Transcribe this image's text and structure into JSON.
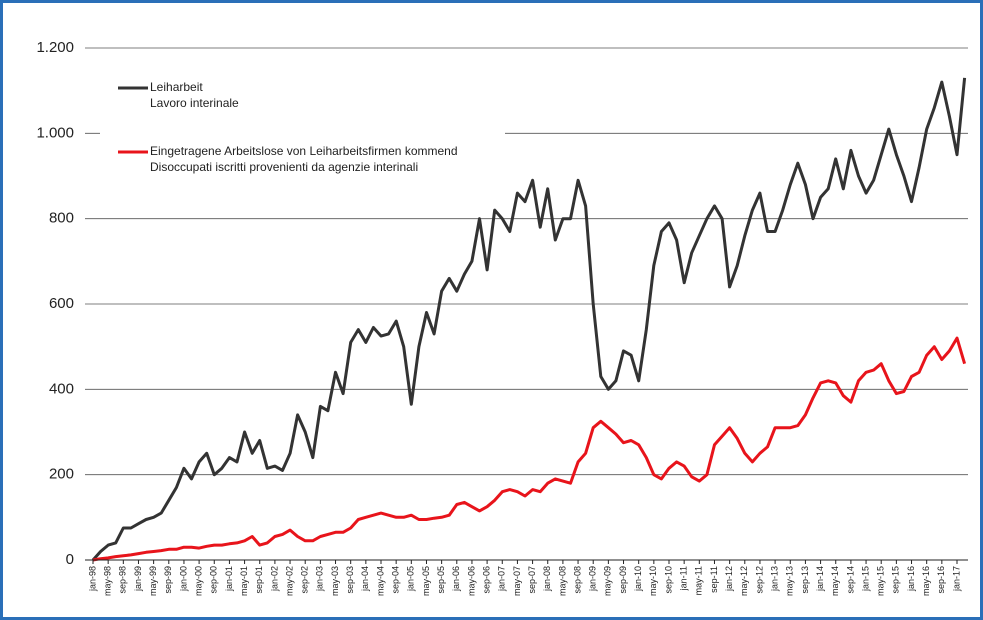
{
  "chart_data": {
    "type": "line",
    "categories": [
      "jan-98",
      null,
      "may-98",
      null,
      "sep-98",
      null,
      "jan-99",
      null,
      "may-99",
      null,
      "sep-99",
      null,
      "jan-00",
      null,
      "may-00",
      null,
      "sep-00",
      null,
      "jan-01",
      null,
      "may-01",
      null,
      "sep-01",
      null,
      "jan-02",
      null,
      "may-02",
      null,
      "sep-02",
      null,
      "jan-03",
      null,
      "may-03",
      null,
      "sep-03",
      null,
      "jan-04",
      null,
      "may-04",
      null,
      "sep-04",
      null,
      "jan-05",
      null,
      "may-05",
      null,
      "sep-05",
      null,
      "jan-06",
      null,
      "may-06",
      null,
      "sep-06",
      null,
      "jan-07",
      null,
      "may-07",
      null,
      "sep-07",
      null,
      "jan-08",
      null,
      "may-08",
      null,
      "sep-08",
      null,
      "jan-09",
      null,
      "may-09",
      null,
      "sep-09",
      null,
      "jan-10",
      null,
      "may-10",
      null,
      "sep-10",
      null,
      "jan-11",
      null,
      "may-11",
      null,
      "sep-11",
      null,
      "jan-12",
      null,
      "may-12",
      null,
      "sep-12",
      null,
      "jan-13",
      null,
      "may-13",
      null,
      "sep-13",
      null,
      "jan-14",
      null,
      "may-14",
      null,
      "sep-14",
      null,
      "jan-15",
      null,
      "may-15",
      null,
      "sep-15",
      null,
      "jan-16",
      null,
      "may-16",
      null,
      "sep-16",
      null,
      "jan-17",
      null
    ],
    "series": [
      {
        "name": [
          "Leiharbeit",
          "Lavoro interinale"
        ],
        "color": "#333333",
        "values": [
          0,
          20,
          35,
          40,
          75,
          75,
          85,
          95,
          100,
          110,
          140,
          170,
          215,
          190,
          230,
          250,
          200,
          215,
          240,
          230,
          300,
          250,
          280,
          215,
          220,
          210,
          250,
          340,
          300,
          240,
          360,
          350,
          440,
          390,
          510,
          540,
          510,
          545,
          525,
          530,
          560,
          500,
          365,
          500,
          580,
          530,
          630,
          660,
          630,
          670,
          700,
          800,
          680,
          820,
          800,
          770,
          860,
          840,
          890,
          780,
          870,
          750,
          800,
          800,
          890,
          830,
          600,
          430,
          400,
          420,
          490,
          480,
          420,
          540,
          690,
          770,
          790,
          750,
          650,
          720,
          760,
          800,
          830,
          800,
          640,
          690,
          760,
          820,
          860,
          770,
          770,
          820,
          880,
          930,
          880,
          800,
          850,
          870,
          940,
          870,
          960,
          900,
          860,
          890,
          950,
          1010,
          950,
          900,
          840,
          920,
          1010,
          1060,
          1120,
          1040,
          950,
          1130
        ]
      },
      {
        "name": [
          "Eingetragene Arbeitslose von Leiharbeitsfirmen kommend",
          "Disoccupati iscritti provenienti da agenzie interinali"
        ],
        "color": "#e8141b",
        "values": [
          0,
          3,
          5,
          8,
          10,
          12,
          15,
          18,
          20,
          22,
          25,
          25,
          30,
          30,
          28,
          32,
          35,
          35,
          38,
          40,
          45,
          55,
          35,
          40,
          55,
          60,
          70,
          55,
          45,
          45,
          55,
          60,
          65,
          65,
          75,
          95,
          100,
          105,
          110,
          105,
          100,
          100,
          105,
          95,
          95,
          98,
          100,
          105,
          130,
          135,
          125,
          115,
          125,
          140,
          160,
          165,
          160,
          150,
          165,
          160,
          180,
          190,
          185,
          180,
          230,
          250,
          310,
          325,
          310,
          295,
          275,
          280,
          270,
          240,
          200,
          190,
          215,
          230,
          220,
          195,
          185,
          200,
          270,
          290,
          310,
          285,
          250,
          230,
          250,
          265,
          310,
          310,
          310,
          315,
          340,
          380,
          415,
          420,
          415,
          385,
          370,
          420,
          440,
          445,
          460,
          420,
          390,
          395,
          430,
          440,
          480,
          500,
          470,
          490,
          520,
          460
        ]
      }
    ],
    "ylim": [
      0,
      1200
    ],
    "yticks": [
      0,
      200,
      400,
      600,
      800,
      {
        "value": 1000,
        "label": "1.000"
      },
      {
        "value": 1200,
        "label": "1.200"
      }
    ],
    "grid": true
  }
}
